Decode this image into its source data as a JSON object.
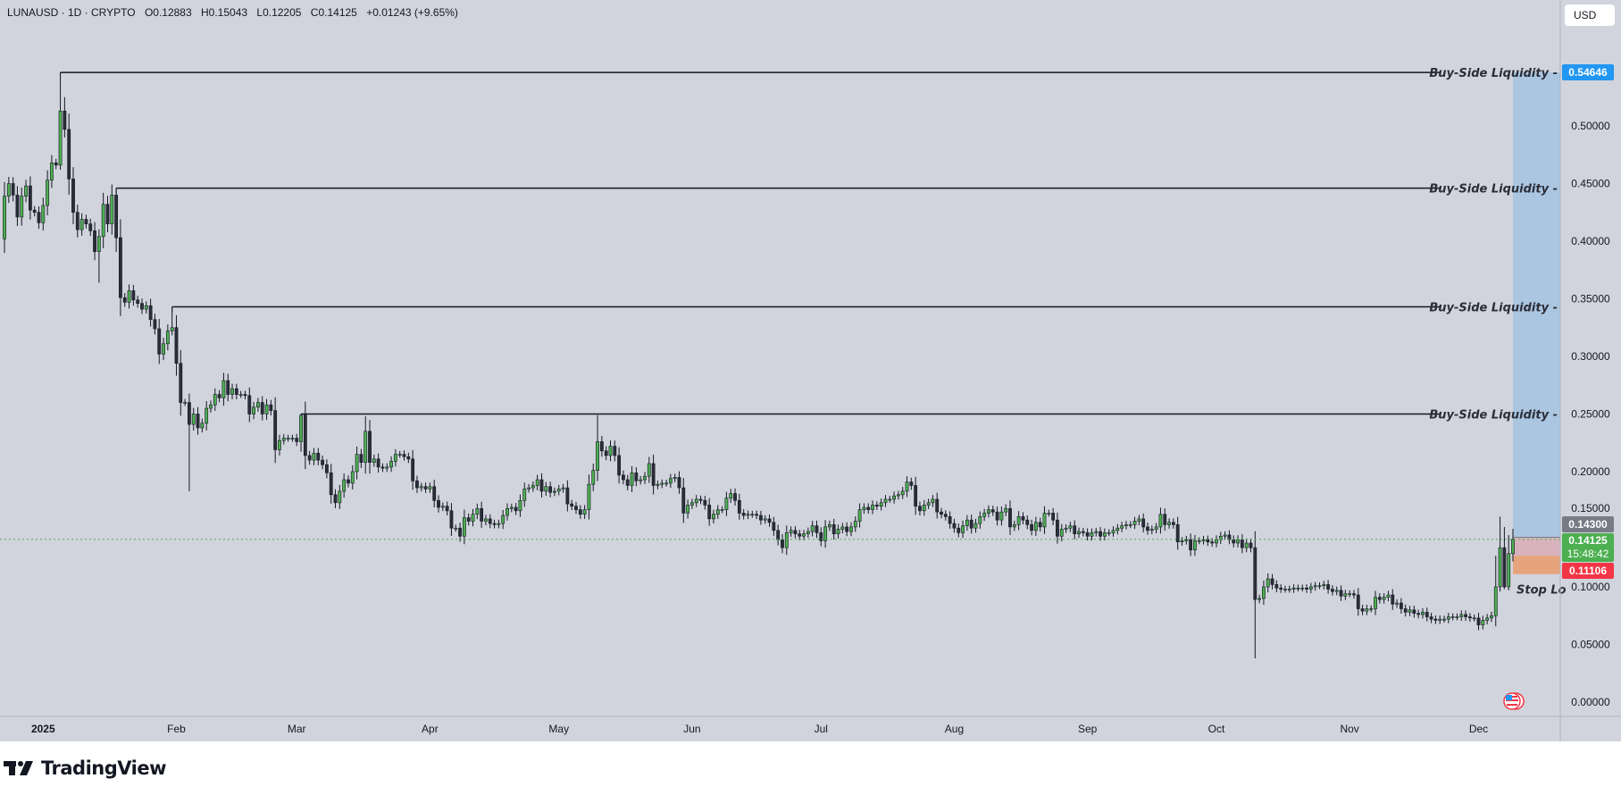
{
  "header": {
    "symbol": "LUNAUSD · 1D · CRYPTO",
    "open": "O0.12883",
    "high": "H0.15043",
    "low": "L0.12205",
    "close": "C0.14125",
    "change": "+0.01243 (+9.65%)"
  },
  "currency_button": "USD",
  "branding": {
    "name": "TradingView"
  },
  "colors": {
    "background": "#d1d4dc",
    "up_candle": "#4caf50",
    "down_candle": "#2a2e39",
    "target_label": "#2196f3",
    "entry_label": "#787b86",
    "price_label": "#4caf50",
    "stop_label": "#f23645",
    "target_zone": "#abc6e0",
    "loss_zone": "#d8b3bd",
    "stop_zone": "#e6a47c"
  },
  "price_labels": {
    "target": "0.54646",
    "entry": "0.14300",
    "current": "0.14125",
    "countdown": "15:48:42",
    "stop": "0.11106"
  },
  "chart_data": {
    "type": "candlestick",
    "timeframe": "1D",
    "first_date": "2024-12-23",
    "first_open": 0.402,
    "closes": [
      0.439,
      0.45,
      0.44,
      0.421,
      0.439,
      0.448,
      0.427,
      0.425,
      0.416,
      0.431,
      0.453,
      0.468,
      0.466,
      0.513,
      0.497,
      0.454,
      0.425,
      0.41,
      0.419,
      0.415,
      0.409,
      0.391,
      0.404,
      0.432,
      0.415,
      0.44,
      0.403,
      0.351,
      0.347,
      0.357,
      0.349,
      0.346,
      0.341,
      0.344,
      0.332,
      0.324,
      0.302,
      0.311,
      0.322,
      0.325,
      0.294,
      0.26,
      0.26,
      0.241,
      0.25,
      0.238,
      0.242,
      0.255,
      0.258,
      0.267,
      0.264,
      0.279,
      0.267,
      0.272,
      0.267,
      0.267,
      0.266,
      0.25,
      0.256,
      0.26,
      0.25,
      0.258,
      0.253,
      0.219,
      0.227,
      0.229,
      0.229,
      0.229,
      0.226,
      0.249,
      0.214,
      0.21,
      0.216,
      0.21,
      0.206,
      0.199,
      0.18,
      0.173,
      0.183,
      0.193,
      0.19,
      0.2,
      0.215,
      0.208,
      0.235,
      0.208,
      0.211,
      0.204,
      0.203,
      0.204,
      0.209,
      0.215,
      0.215,
      0.213,
      0.211,
      0.192,
      0.186,
      0.187,
      0.185,
      0.187,
      0.175,
      0.169,
      0.17,
      0.166,
      0.151,
      0.151,
      0.144,
      0.16,
      0.157,
      0.163,
      0.168,
      0.157,
      0.159,
      0.155,
      0.154,
      0.155,
      0.162,
      0.168,
      0.169,
      0.166,
      0.175,
      0.185,
      0.186,
      0.188,
      0.193,
      0.183,
      0.187,
      0.182,
      0.183,
      0.185,
      0.186,
      0.172,
      0.17,
      0.167,
      0.163,
      0.167,
      0.189,
      0.201,
      0.226,
      0.218,
      0.214,
      0.222,
      0.214,
      0.197,
      0.193,
      0.188,
      0.199,
      0.192,
      0.193,
      0.196,
      0.207,
      0.188,
      0.189,
      0.19,
      0.19,
      0.194,
      0.195,
      0.186,
      0.164,
      0.171,
      0.173,
      0.176,
      0.175,
      0.171,
      0.159,
      0.163,
      0.167,
      0.167,
      0.177,
      0.181,
      0.175,
      0.164,
      0.162,
      0.163,
      0.163,
      0.162,
      0.158,
      0.159,
      0.156,
      0.149,
      0.141,
      0.134,
      0.147,
      0.149,
      0.146,
      0.144,
      0.146,
      0.148,
      0.153,
      0.147,
      0.14,
      0.152,
      0.154,
      0.146,
      0.15,
      0.152,
      0.148,
      0.152,
      0.157,
      0.167,
      0.169,
      0.167,
      0.171,
      0.17,
      0.173,
      0.176,
      0.176,
      0.179,
      0.18,
      0.183,
      0.191,
      0.188,
      0.17,
      0.166,
      0.171,
      0.173,
      0.176,
      0.165,
      0.163,
      0.161,
      0.155,
      0.151,
      0.147,
      0.153,
      0.158,
      0.151,
      0.155,
      0.161,
      0.164,
      0.167,
      0.165,
      0.158,
      0.165,
      0.168,
      0.152,
      0.154,
      0.161,
      0.158,
      0.154,
      0.149,
      0.156,
      0.152,
      0.164,
      0.164,
      0.158,
      0.144,
      0.15,
      0.151,
      0.153,
      0.146,
      0.148,
      0.147,
      0.144,
      0.147,
      0.148,
      0.144,
      0.147,
      0.147,
      0.149,
      0.151,
      0.153,
      0.154,
      0.154,
      0.157,
      0.159,
      0.152,
      0.149,
      0.15,
      0.152,
      0.163,
      0.154,
      0.156,
      0.154,
      0.139,
      0.14,
      0.141,
      0.132,
      0.14,
      0.14,
      0.141,
      0.139,
      0.138,
      0.141,
      0.144,
      0.145,
      0.141,
      0.138,
      0.141,
      0.134,
      0.138,
      0.134,
      0.089,
      0.09,
      0.1,
      0.107,
      0.102,
      0.099,
      0.098,
      0.098,
      0.098,
      0.099,
      0.099,
      0.099,
      0.098,
      0.1,
      0.101,
      0.101,
      0.102,
      0.098,
      0.096,
      0.097,
      0.092,
      0.094,
      0.094,
      0.093,
      0.081,
      0.079,
      0.081,
      0.081,
      0.091,
      0.089,
      0.091,
      0.093,
      0.085,
      0.086,
      0.081,
      0.078,
      0.08,
      0.077,
      0.076,
      0.078,
      0.074,
      0.072,
      0.071,
      0.072,
      0.072,
      0.074,
      0.074,
      0.074,
      0.076,
      0.074,
      0.073,
      0.073,
      0.067,
      0.071,
      0.073,
      0.075,
      0.1,
      0.134,
      0.1,
      0.12883,
      0.14125
    ],
    "wick_extremes": [
      {
        "i": 13,
        "h": 0.54646,
        "l": 0.462
      },
      {
        "i": 14,
        "h": 0.525
      },
      {
        "i": 22,
        "l": 0.364
      },
      {
        "i": 26,
        "h": 0.446
      },
      {
        "i": 39,
        "h": 0.343
      },
      {
        "i": 43,
        "l": 0.183
      },
      {
        "i": 69,
        "h": 0.25
      },
      {
        "i": 84,
        "h": 0.248
      },
      {
        "i": 138,
        "h": 0.249
      },
      {
        "i": 291,
        "l": 0.038
      },
      {
        "i": 347,
        "h": 0.127
      },
      {
        "i": 348,
        "h": 0.161,
        "l": 0.096
      },
      {
        "i": 349,
        "h": 0.152,
        "l": 0.098
      },
      {
        "i": 350,
        "h": 0.145,
        "l": 0.097
      },
      {
        "i": 351,
        "h": 0.15043,
        "l": 0.12205
      }
    ],
    "y_axis": {
      "min": 0,
      "max": 0.55,
      "step": 0.05,
      "ticks": [
        "0.00000",
        "0.05000",
        "0.10000",
        "0.15000",
        "0.20000",
        "0.25000",
        "0.30000",
        "0.35000",
        "0.40000",
        "0.45000",
        "0.50000"
      ]
    },
    "x_ticks": [
      {
        "label": "2025",
        "date": "2025-01-01"
      },
      {
        "label": "Feb",
        "date": "2025-02-01"
      },
      {
        "label": "Mar",
        "date": "2025-03-01"
      },
      {
        "label": "Apr",
        "date": "2025-04-01"
      },
      {
        "label": "May",
        "date": "2025-05-01"
      },
      {
        "label": "Jun",
        "date": "2025-06-01"
      },
      {
        "label": "Jul",
        "date": "2025-07-01"
      },
      {
        "label": "Aug",
        "date": "2025-08-01"
      },
      {
        "label": "Sep",
        "date": "2025-09-01"
      },
      {
        "label": "Oct",
        "date": "2025-10-01"
      },
      {
        "label": "Nov",
        "date": "2025-11-01"
      },
      {
        "label": "Dec",
        "date": "2025-12-01"
      }
    ],
    "current_price": 0.14125,
    "liquidity_levels": [
      {
        "label": "Buy-Side Liquidity -",
        "price": 0.54646,
        "from_date": "2025-01-05"
      },
      {
        "label": "Buy-Side Liquidity -",
        "price": 0.446,
        "from_date": "2025-01-18"
      },
      {
        "label": "Buy-Side Liquidity -",
        "price": 0.343,
        "from_date": "2025-01-31"
      },
      {
        "label": "Buy-Side Liquidity -",
        "price": 0.25,
        "from_date": "2025-03-02"
      }
    ],
    "position": {
      "type": "long",
      "entry": 0.143,
      "target": 0.54646,
      "stop": 0.11106,
      "loss_zone_split": 0.127,
      "from_date": "2025-12-09",
      "stop_text": "Stop Lo"
    },
    "grid": false
  }
}
